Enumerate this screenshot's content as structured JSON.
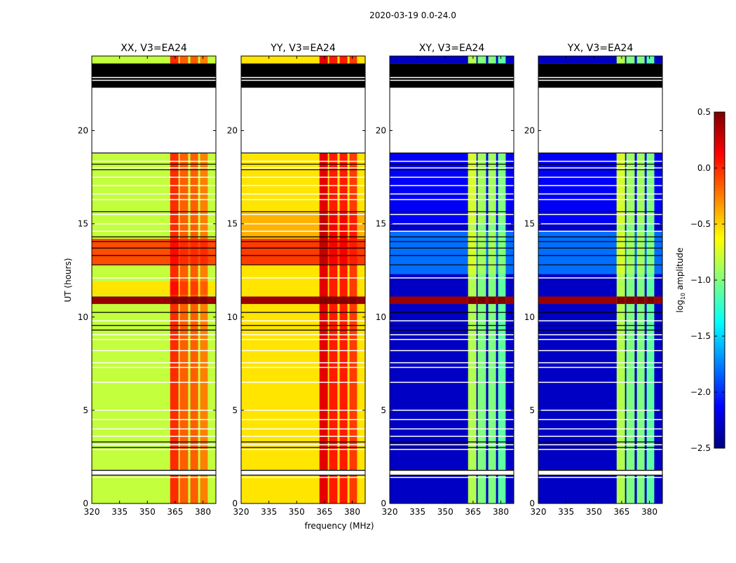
{
  "chart_data": {
    "type": "heatmap",
    "title": "2020-03-19 0.0-24.0",
    "xlabel": "frequency (MHz)",
    "ylabel": "UT (hours)",
    "xlim": [
      320,
      387
    ],
    "ylim": [
      0,
      24
    ],
    "xticks": [
      320,
      335,
      350,
      365,
      380
    ],
    "yticks": [
      0,
      5,
      10,
      15,
      20
    ],
    "colormap": "jet",
    "colorbar": {
      "label_prefix": "log",
      "label_sub": "10",
      "label_suffix": " amplitude",
      "range": [
        -2.5,
        0.5
      ],
      "ticks": [
        "0.5",
        "0.0",
        "−0.5",
        "−1.0",
        "−1.5",
        "−2.0",
        "−2.5"
      ],
      "tick_values": [
        0.5,
        0.0,
        -0.5,
        -1.0,
        -1.5,
        -2.0,
        -2.5
      ]
    },
    "data_segments_hours": [
      [
        0,
        1.5
      ],
      [
        1.8,
        18.8
      ],
      [
        23.6,
        24
      ]
    ],
    "flagged_black_hours": [
      22.3,
      23.6
    ],
    "white_lines_hours": [
      1.4,
      2.9,
      3.15,
      3.6,
      4.0,
      4.5,
      5.0,
      6.5,
      7.3,
      7.55,
      8.2,
      8.8,
      9.05,
      9.8,
      12.1,
      14.6,
      15.0,
      15.5,
      16.3,
      16.6,
      17.05,
      17.5,
      18.0,
      18.35,
      22.7,
      22.85
    ],
    "black_lines_hours": [
      1.52,
      1.78,
      3.0,
      3.3,
      9.3,
      9.55,
      10.25,
      12.8,
      13.3,
      13.7,
      14.05,
      14.3,
      15.65,
      17.9,
      18.2,
      18.8
    ],
    "rfi_columns_mhz": [
      [
        362.3,
        366.8
      ],
      [
        367.5,
        372.0
      ],
      [
        373.2,
        377.4
      ],
      [
        378.5,
        382.6
      ]
    ],
    "panels": [
      {
        "title": "XX, V3=EA24",
        "background_level": -0.8,
        "rfi_level": -0.15,
        "bands": [
          {
            "t0": 10.7,
            "t1": 11.1,
            "level": 0.42
          },
          {
            "t0": 12.8,
            "t1": 14.2,
            "level": -0.1
          },
          {
            "t0": 11.2,
            "t1": 11.9,
            "level": -0.55
          }
        ]
      },
      {
        "title": "YY, V3=EA24",
        "background_level": -0.55,
        "rfi_level": 0.05,
        "bands": [
          {
            "t0": 10.7,
            "t1": 11.1,
            "level": 0.42
          },
          {
            "t0": 12.8,
            "t1": 14.2,
            "level": -0.05
          },
          {
            "t0": 14.2,
            "t1": 15.6,
            "level": -0.4
          }
        ]
      },
      {
        "title": "XY, V3=EA24",
        "background_level": -2.3,
        "rfi_level": -1.0,
        "bands": [
          {
            "t0": 10.7,
            "t1": 11.1,
            "level": 0.42
          },
          {
            "t0": 12.3,
            "t1": 14.6,
            "level": -1.8
          },
          {
            "t0": 15.0,
            "t1": 18.8,
            "level": -2.15
          }
        ]
      },
      {
        "title": "YX, V3=EA24",
        "background_level": -2.3,
        "rfi_level": -1.0,
        "bands": [
          {
            "t0": 10.7,
            "t1": 11.1,
            "level": 0.42
          },
          {
            "t0": 12.3,
            "t1": 14.6,
            "level": -1.8
          },
          {
            "t0": 15.0,
            "t1": 18.8,
            "level": -2.15
          }
        ]
      }
    ]
  }
}
